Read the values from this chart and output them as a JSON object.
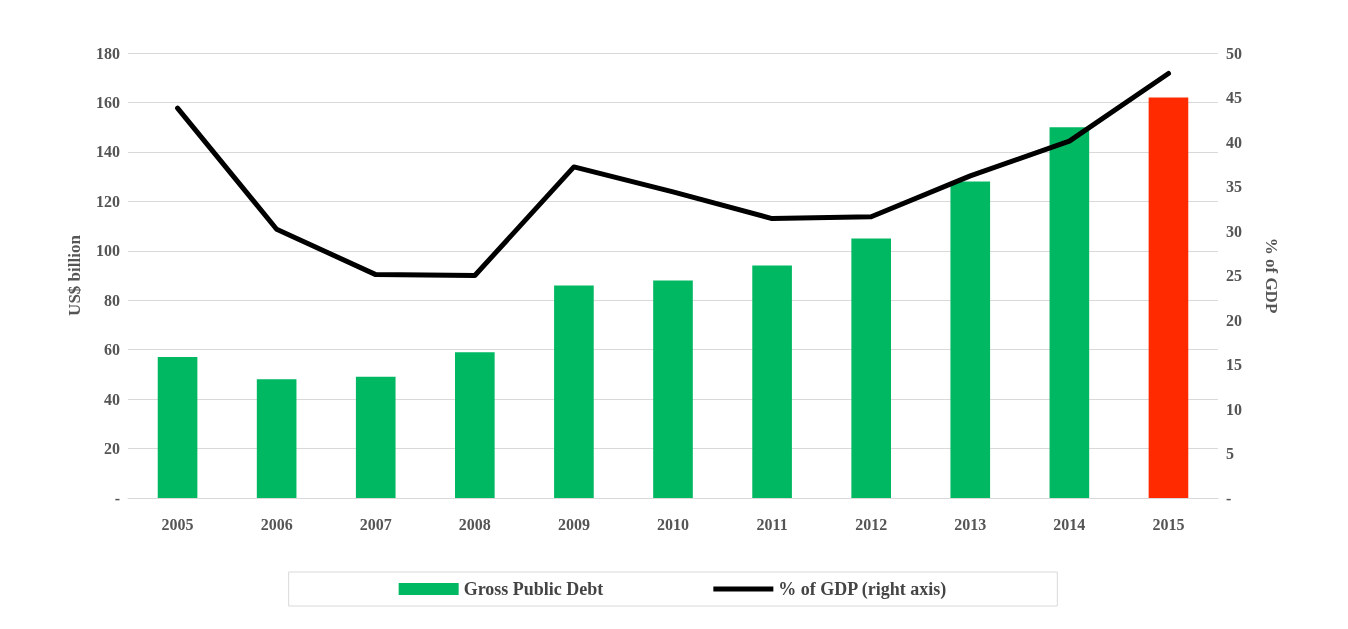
{
  "chart_data": {
    "type": "bar",
    "ylabel": "US$ billion",
    "y2label": "% of GDP",
    "categories": [
      "2005",
      "2006",
      "2007",
      "2008",
      "2009",
      "2010",
      "2011",
      "2012",
      "2013",
      "2014",
      "2015"
    ],
    "series": [
      {
        "name": "Gross Public Debt",
        "color": "#00b862",
        "colors": [
          "#00b862",
          "#00b862",
          "#00b862",
          "#00b862",
          "#00b862",
          "#00b862",
          "#00b862",
          "#00b862",
          "#00b862",
          "#00b862",
          "#ff2a00"
        ],
        "values": [
          57,
          48,
          49,
          59,
          86,
          88,
          94,
          105,
          128,
          150,
          162
        ]
      },
      {
        "name": "% of GDP (right axis)",
        "type": "line",
        "axis": "y2",
        "color": "#000000",
        "marker": "none",
        "values": [
          43.8,
          30.2,
          25.1,
          25,
          37.2,
          34.4,
          31.4,
          31.6,
          36.2,
          40.1,
          47.7
        ]
      }
    ],
    "ylim": [
      0,
      180
    ],
    "yticks": [
      {
        "value": 0,
        "label": "-"
      },
      20,
      40,
      60,
      80,
      100,
      120,
      140,
      160,
      180
    ],
    "y2lim": [
      0,
      50
    ],
    "y2ticks": [
      {
        "value": 0,
        "label": "-"
      },
      5,
      10,
      15,
      20,
      25,
      30,
      35,
      40,
      45,
      50
    ],
    "grid": "y",
    "legend": "bottom"
  }
}
